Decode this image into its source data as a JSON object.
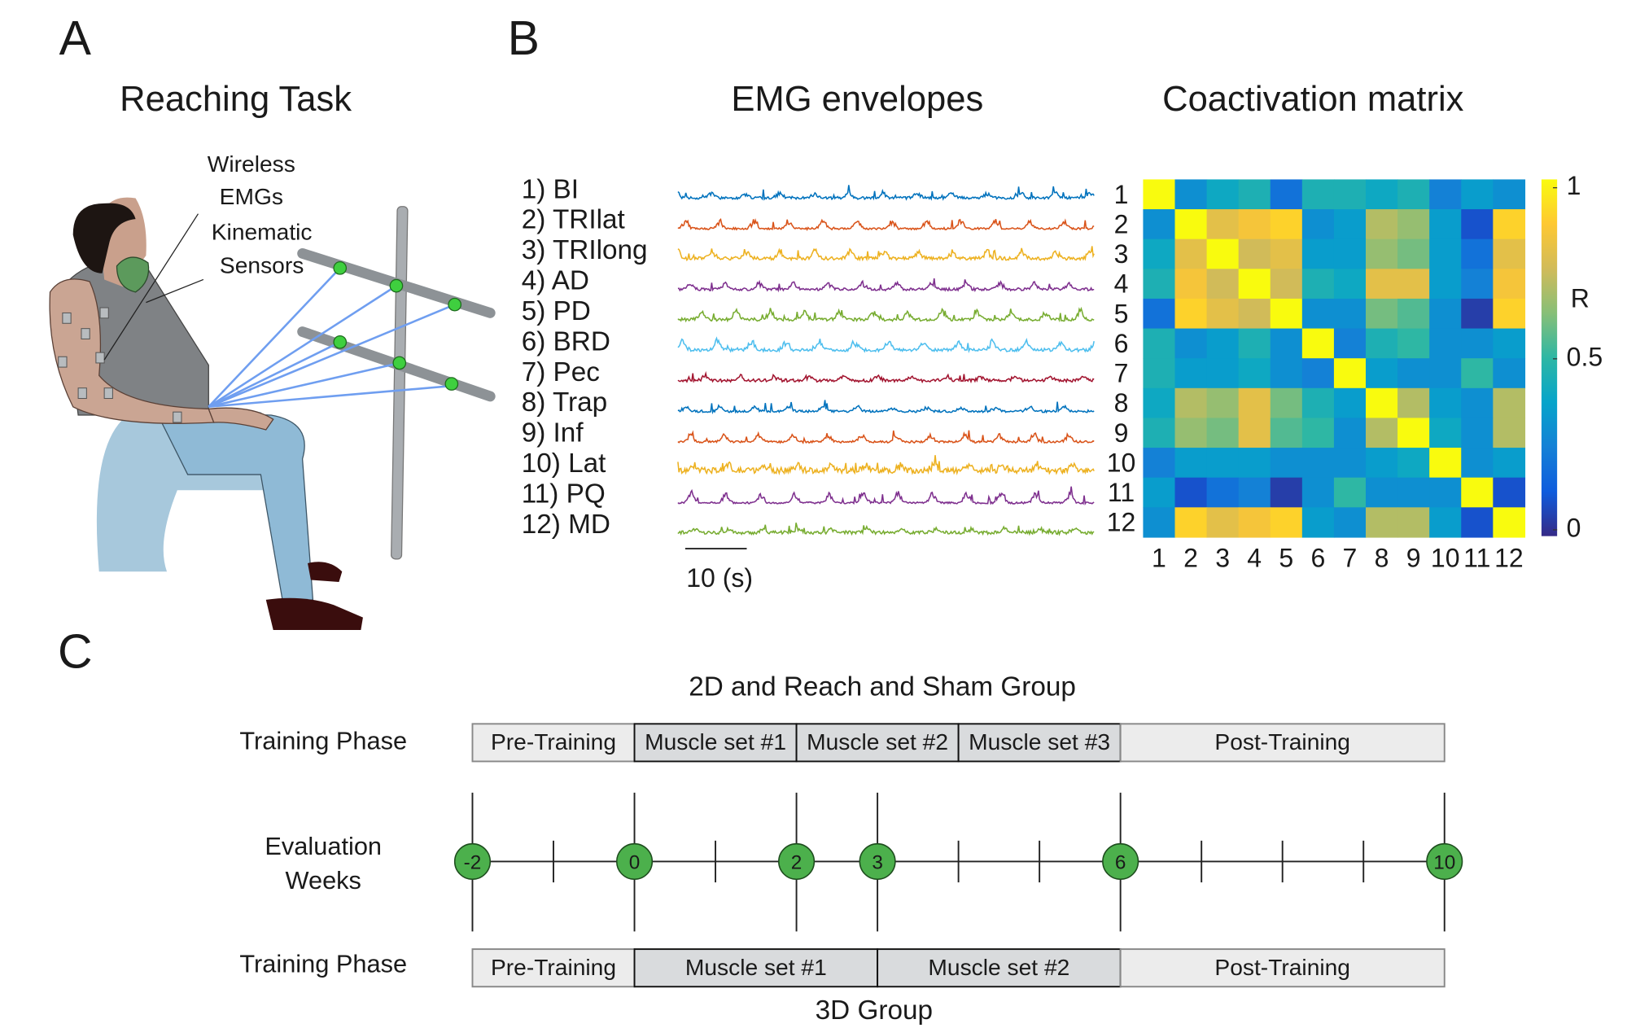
{
  "panels": {
    "a": {
      "letter": "A",
      "title": "Reaching Task",
      "annotations": [
        [
          "Wireless",
          "EMGs"
        ],
        [
          "Kinematic",
          "Sensors"
        ]
      ]
    },
    "b": {
      "letter": "B",
      "emg_title": "EMG envelopes",
      "muscles": [
        "1) BI",
        "2) TRIlat",
        "3) TRIlong",
        "4) AD",
        "5) PD",
        "6) BRD",
        "7) Pec",
        "8) Trap",
        "9) Inf",
        "10) Lat",
        "11) PQ",
        "12) MD"
      ],
      "trace_colors": [
        "#0072bd",
        "#d95319",
        "#edb120",
        "#7e2f8e",
        "#77ac30",
        "#4dbeee",
        "#a2142f",
        "#0072bd",
        "#d95319",
        "#edb120",
        "#7e2f8e",
        "#77ac30"
      ],
      "scale_bar": "10 (s)",
      "matrix_title": "Coactivation matrix",
      "matrix_labels": [
        1,
        2,
        3,
        4,
        5,
        6,
        7,
        8,
        9,
        10,
        11,
        12
      ],
      "matrix": [
        [
          1,
          0.3,
          0.4,
          0.45,
          0.2,
          0.45,
          0.45,
          0.4,
          0.45,
          0.25,
          0.35,
          0.3
        ],
        [
          0.3,
          1,
          0.8,
          0.85,
          0.9,
          0.3,
          0.35,
          0.7,
          0.65,
          0.35,
          0.1,
          0.9
        ],
        [
          0.4,
          0.8,
          1,
          0.75,
          0.8,
          0.35,
          0.35,
          0.65,
          0.6,
          0.35,
          0.2,
          0.8
        ],
        [
          0.45,
          0.85,
          0.75,
          1,
          0.75,
          0.45,
          0.4,
          0.8,
          0.8,
          0.35,
          0.25,
          0.85
        ],
        [
          0.2,
          0.9,
          0.8,
          0.75,
          1,
          0.3,
          0.3,
          0.6,
          0.55,
          0.3,
          0.05,
          0.9
        ],
        [
          0.45,
          0.3,
          0.35,
          0.45,
          0.3,
          1,
          0.25,
          0.45,
          0.5,
          0.3,
          0.3,
          0.35
        ],
        [
          0.45,
          0.35,
          0.35,
          0.4,
          0.3,
          0.25,
          1,
          0.35,
          0.3,
          0.3,
          0.5,
          0.3
        ],
        [
          0.4,
          0.7,
          0.65,
          0.8,
          0.6,
          0.45,
          0.35,
          1,
          0.7,
          0.35,
          0.3,
          0.7
        ],
        [
          0.45,
          0.65,
          0.6,
          0.8,
          0.55,
          0.5,
          0.3,
          0.7,
          1,
          0.4,
          0.3,
          0.7
        ],
        [
          0.25,
          0.35,
          0.35,
          0.35,
          0.3,
          0.3,
          0.3,
          0.35,
          0.4,
          1,
          0.3,
          0.35
        ],
        [
          0.35,
          0.1,
          0.2,
          0.25,
          0.05,
          0.3,
          0.5,
          0.3,
          0.3,
          0.3,
          1,
          0.1
        ],
        [
          0.3,
          0.9,
          0.8,
          0.85,
          0.9,
          0.35,
          0.3,
          0.7,
          0.7,
          0.35,
          0.1,
          1
        ]
      ],
      "colorbar_label": "R",
      "clim": [
        0,
        1
      ],
      "colorbar_ticks": [
        1,
        0.5,
        0
      ]
    },
    "c": {
      "letter": "C",
      "top_group": "2D and Reach and Sham Group",
      "top_phase_label": "Training Phase",
      "top_phases": [
        {
          "label": "Pre-Training",
          "start": -2,
          "end": 0
        },
        {
          "label": "Muscle set #1",
          "start": 0,
          "end": 2
        },
        {
          "label": "Muscle set #2",
          "start": 2,
          "end": 4
        },
        {
          "label": "Muscle set #3",
          "start": 4,
          "end": 6
        },
        {
          "label": "Post-Training",
          "start": 6,
          "end": 10
        }
      ],
      "eval_label": [
        "Evaluation",
        "Weeks"
      ],
      "eval_weeks": [
        -2,
        0,
        2,
        3,
        6,
        10
      ],
      "bottom_phase_label": "Training Phase",
      "bottom_phases": [
        {
          "label": "Pre-Training",
          "start": -2,
          "end": 0
        },
        {
          "label": "Muscle set #1",
          "start": 0,
          "end": 3
        },
        {
          "label": "Muscle set #2",
          "start": 3,
          "end": 6
        },
        {
          "label": "Post-Training",
          "start": 6,
          "end": 10
        }
      ],
      "bottom_group": "3D Group"
    }
  }
}
